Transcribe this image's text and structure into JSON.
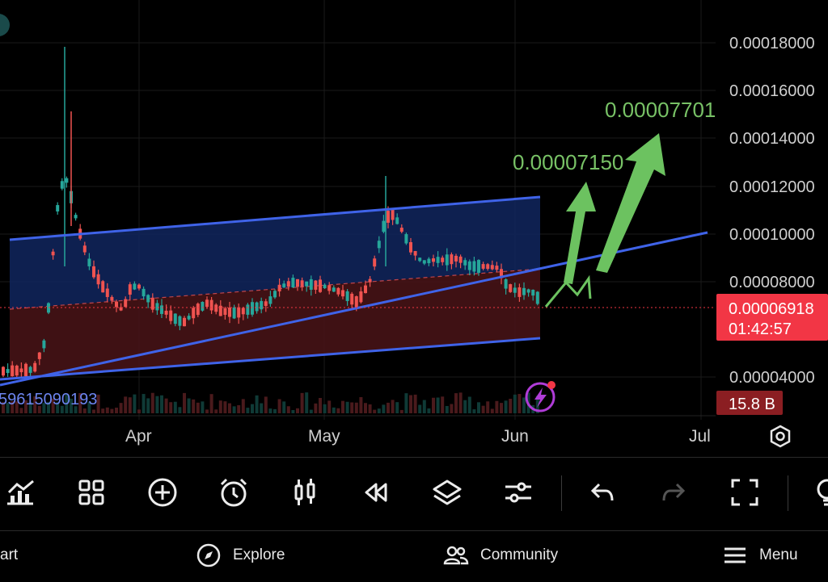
{
  "chart": {
    "price_axis_labels": [
      "0.00018000",
      "0.00016000",
      "0.00014000",
      "0.00012000",
      "0.00010000",
      "0.00008000",
      "0.00004000"
    ],
    "date_axis_labels": [
      "Apr",
      "May",
      "Jun",
      "Jul"
    ],
    "current_price": "0.00006918",
    "countdown": "01:42:57",
    "volume_badge": "15.8 B",
    "left_partial_value": "59615090193",
    "target_1": "0.00007150",
    "target_2": "0.00007701",
    "colors": {
      "up_candle": "#26a69a",
      "down_candle": "#ef5350",
      "channel_line": "#3f63e8",
      "channel_upper_fill": "#10265e",
      "channel_lower_fill": "#4a1418",
      "arrow_green": "#6cc260",
      "price_badge": "#f23645",
      "volume_badge": "#8b1e22"
    }
  },
  "toolbar": {
    "icons": [
      "indicators-icon",
      "layout-grid-icon",
      "add-circle-icon",
      "alarm-icon",
      "candlestick-icon",
      "replay-icon",
      "layers-icon",
      "settings-sliders-icon",
      "undo-icon",
      "redo-icon",
      "fullscreen-icon",
      "idea-icon"
    ]
  },
  "nav": {
    "chart_label": "art",
    "explore_label": "Explore",
    "community_label": "Community",
    "menu_label": "Menu"
  }
}
